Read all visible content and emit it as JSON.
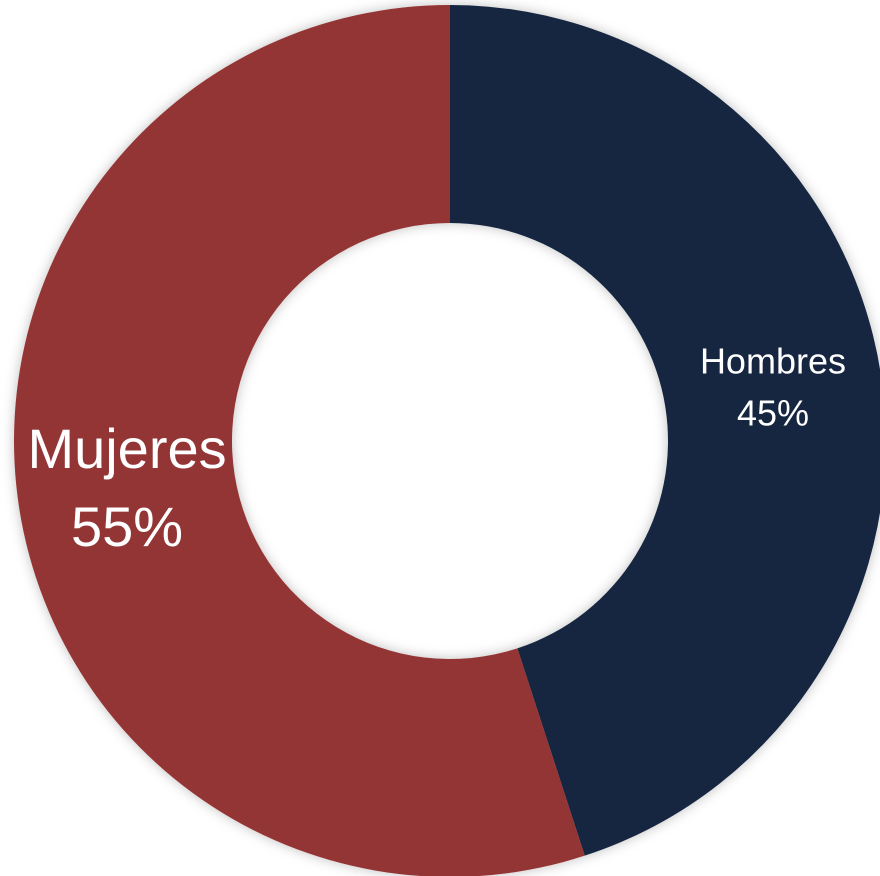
{
  "chart_data": {
    "type": "donut",
    "categories": [
      "Hombres",
      "Mujeres"
    ],
    "values": [
      45,
      55
    ],
    "value_labels": [
      "45%",
      "55%"
    ],
    "colors": [
      "#12253f",
      "#943634"
    ]
  }
}
